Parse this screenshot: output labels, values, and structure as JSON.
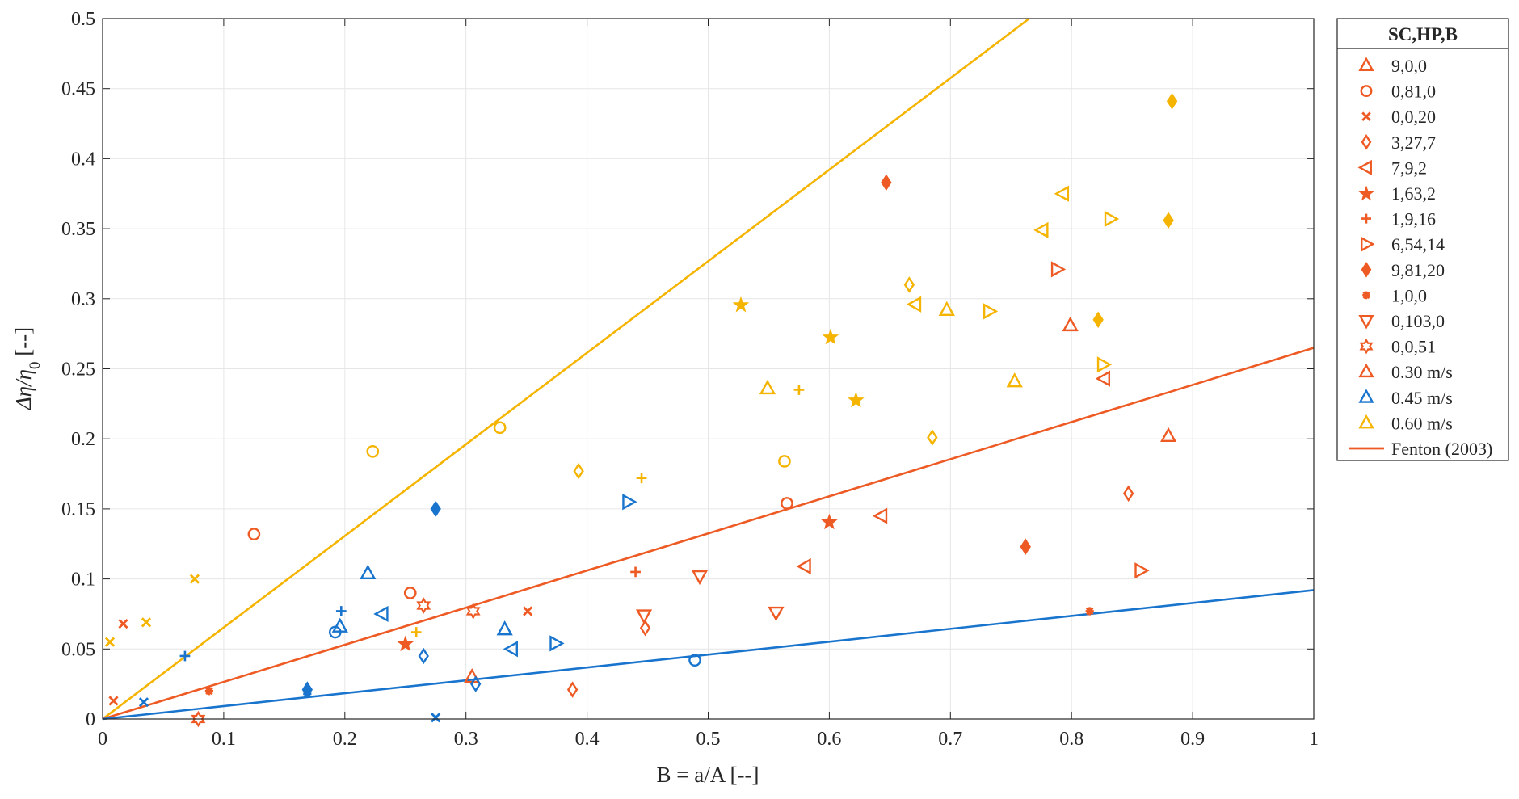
{
  "colors": {
    "c030": "#EE5A24",
    "c045": "#1874CD",
    "c060": "#F5B400",
    "grid": "#e6e6e6",
    "axis": "#262626"
  },
  "chart_data": {
    "type": "scatter",
    "xlabel": "B = a/A [--]",
    "ylabel_parts": [
      "Δη/η",
      "0",
      " [--]"
    ],
    "xlim": [
      0,
      1
    ],
    "ylim": [
      0,
      0.5
    ],
    "grid": true,
    "x_ticks": [
      0,
      0.1,
      0.2,
      0.3,
      0.4,
      0.5,
      0.6,
      0.7,
      0.8,
      0.9,
      1
    ],
    "x_tick_labels": [
      "0",
      "0.1",
      "0.2",
      "0.3",
      "0.4",
      "0.5",
      "0.6",
      "0.7",
      "0.8",
      "0.9",
      "1"
    ],
    "y_ticks": [
      0,
      0.05,
      0.1,
      0.15,
      0.2,
      0.25,
      0.3,
      0.35,
      0.4,
      0.45,
      0.5
    ],
    "y_tick_labels": [
      "0",
      "0.05",
      "0.1",
      "0.15",
      "0.2",
      "0.25",
      "0.3",
      "0.35",
      "0.4",
      "0.45",
      "0.5"
    ],
    "legend": {
      "placement": "outside-right-top",
      "title": "SC,HP,B",
      "entries": [
        {
          "label": "9,0,0",
          "marker": "triangle-up",
          "color": "c030"
        },
        {
          "label": "0,81,0",
          "marker": "circle",
          "color": "c030"
        },
        {
          "label": "0,0,20",
          "marker": "x",
          "color": "c030"
        },
        {
          "label": "3,27,7",
          "marker": "diamond",
          "color": "c030"
        },
        {
          "label": "7,9,2",
          "marker": "triangle-left",
          "color": "c030"
        },
        {
          "label": "1,63,2",
          "marker": "star",
          "color": "c030"
        },
        {
          "label": "1,9,16",
          "marker": "plus",
          "color": "c030"
        },
        {
          "label": "6,54,14",
          "marker": "triangle-right",
          "color": "c030"
        },
        {
          "label": "9,81,20",
          "marker": "diamond-filled",
          "color": "c030"
        },
        {
          "label": "1,0,0",
          "marker": "asterisk",
          "color": "c030"
        },
        {
          "label": "0,103,0",
          "marker": "triangle-down",
          "color": "c030"
        },
        {
          "label": "0,0,51",
          "marker": "hexagram",
          "color": "c030"
        },
        {
          "label": "0.30 m/s",
          "marker": "triangle-up",
          "color": "c030"
        },
        {
          "label": "0.45 m/s",
          "marker": "triangle-up",
          "color": "c045"
        },
        {
          "label": "0.60 m/s",
          "marker": "triangle-up",
          "color": "c060"
        },
        {
          "label": "Fenton (2003)",
          "marker": "line",
          "color": "c030"
        }
      ]
    },
    "lines": [
      {
        "name": "0.60 m/s fit",
        "color": "c060",
        "slope": 0.5,
        "x": [
          0,
          0.765
        ],
        "y": [
          0,
          0.5
        ]
      },
      {
        "name": "Fenton (2003)",
        "color": "c030",
        "slope": 0.265,
        "x": [
          0,
          1
        ],
        "y": [
          0,
          0.265
        ]
      },
      {
        "name": "0.45 m/s fit",
        "color": "c045",
        "slope": 0.092,
        "x": [
          0,
          1
        ],
        "y": [
          0,
          0.092
        ]
      }
    ],
    "series": [
      {
        "name": "9,0,0",
        "marker": "triangle-up",
        "points": [
          {
            "x": 0.305,
            "y": 0.03,
            "c": "c030"
          },
          {
            "x": 0.799,
            "y": 0.281,
            "c": "c030"
          },
          {
            "x": 0.88,
            "y": 0.202,
            "c": "c030"
          },
          {
            "x": 0.196,
            "y": 0.066,
            "c": "c045"
          },
          {
            "x": 0.219,
            "y": 0.104,
            "c": "c045"
          },
          {
            "x": 0.332,
            "y": 0.064,
            "c": "c045"
          },
          {
            "x": 0.549,
            "y": 0.236,
            "c": "c060"
          },
          {
            "x": 0.697,
            "y": 0.292,
            "c": "c060"
          },
          {
            "x": 0.753,
            "y": 0.241,
            "c": "c060"
          }
        ]
      },
      {
        "name": "0,81,0",
        "marker": "circle",
        "points": [
          {
            "x": 0.125,
            "y": 0.132,
            "c": "c030"
          },
          {
            "x": 0.254,
            "y": 0.09,
            "c": "c030"
          },
          {
            "x": 0.565,
            "y": 0.154,
            "c": "c030"
          },
          {
            "x": 0.192,
            "y": 0.062,
            "c": "c045"
          },
          {
            "x": 0.489,
            "y": 0.042,
            "c": "c045"
          },
          {
            "x": 0.223,
            "y": 0.191,
            "c": "c060"
          },
          {
            "x": 0.328,
            "y": 0.208,
            "c": "c060"
          },
          {
            "x": 0.563,
            "y": 0.184,
            "c": "c060"
          }
        ]
      },
      {
        "name": "0,0,20",
        "marker": "x",
        "points": [
          {
            "x": 0.009,
            "y": 0.013,
            "c": "c030"
          },
          {
            "x": 0.017,
            "y": 0.068,
            "c": "c030"
          },
          {
            "x": 0.351,
            "y": 0.077,
            "c": "c030"
          },
          {
            "x": 0.034,
            "y": 0.012,
            "c": "c045"
          },
          {
            "x": 0.275,
            "y": 0.001,
            "c": "c045"
          },
          {
            "x": 0.006,
            "y": 0.055,
            "c": "c060"
          },
          {
            "x": 0.036,
            "y": 0.069,
            "c": "c060"
          },
          {
            "x": 0.076,
            "y": 0.1,
            "c": "c060"
          }
        ]
      },
      {
        "name": "3,27,7",
        "marker": "diamond",
        "points": [
          {
            "x": 0.388,
            "y": 0.021,
            "c": "c030"
          },
          {
            "x": 0.448,
            "y": 0.065,
            "c": "c030"
          },
          {
            "x": 0.847,
            "y": 0.161,
            "c": "c030"
          },
          {
            "x": 0.265,
            "y": 0.045,
            "c": "c045"
          },
          {
            "x": 0.308,
            "y": 0.025,
            "c": "c045"
          },
          {
            "x": 0.393,
            "y": 0.177,
            "c": "c060"
          },
          {
            "x": 0.666,
            "y": 0.31,
            "c": "c060"
          },
          {
            "x": 0.685,
            "y": 0.201,
            "c": "c060"
          }
        ]
      },
      {
        "name": "7,9,2",
        "marker": "triangle-left",
        "points": [
          {
            "x": 0.58,
            "y": 0.109,
            "c": "c030"
          },
          {
            "x": 0.643,
            "y": 0.145,
            "c": "c030"
          },
          {
            "x": 0.827,
            "y": 0.243,
            "c": "c030"
          },
          {
            "x": 0.231,
            "y": 0.075,
            "c": "c045"
          },
          {
            "x": 0.338,
            "y": 0.05,
            "c": "c045"
          },
          {
            "x": 0.671,
            "y": 0.296,
            "c": "c060"
          },
          {
            "x": 0.776,
            "y": 0.349,
            "c": "c060"
          },
          {
            "x": 0.793,
            "y": 0.375,
            "c": "c060"
          }
        ]
      },
      {
        "name": "1,63,2",
        "marker": "star",
        "points": [
          {
            "x": 0.25,
            "y": 0.054,
            "c": "c030"
          },
          {
            "x": 0.6,
            "y": 0.141,
            "c": "c030"
          },
          {
            "x": 0.527,
            "y": 0.296,
            "c": "c060"
          },
          {
            "x": 0.601,
            "y": 0.273,
            "c": "c060"
          },
          {
            "x": 0.622,
            "y": 0.228,
            "c": "c060"
          }
        ]
      },
      {
        "name": "1,9,16",
        "marker": "plus",
        "points": [
          {
            "x": 0.44,
            "y": 0.105,
            "c": "c030"
          },
          {
            "x": 0.197,
            "y": 0.077,
            "c": "c045"
          },
          {
            "x": 0.068,
            "y": 0.045,
            "c": "c045"
          },
          {
            "x": 0.259,
            "y": 0.062,
            "c": "c060"
          },
          {
            "x": 0.445,
            "y": 0.172,
            "c": "c060"
          },
          {
            "x": 0.575,
            "y": 0.235,
            "c": "c060"
          }
        ]
      },
      {
        "name": "6,54,14",
        "marker": "triangle-right",
        "points": [
          {
            "x": 0.788,
            "y": 0.321,
            "c": "c030"
          },
          {
            "x": 0.857,
            "y": 0.106,
            "c": "c030"
          },
          {
            "x": 0.374,
            "y": 0.054,
            "c": "c045"
          },
          {
            "x": 0.434,
            "y": 0.155,
            "c": "c045"
          },
          {
            "x": 0.732,
            "y": 0.291,
            "c": "c060"
          },
          {
            "x": 0.826,
            "y": 0.253,
            "c": "c060"
          },
          {
            "x": 0.832,
            "y": 0.357,
            "c": "c060"
          }
        ]
      },
      {
        "name": "9,81,20",
        "marker": "diamond-filled",
        "points": [
          {
            "x": 0.647,
            "y": 0.383,
            "c": "c030"
          },
          {
            "x": 0.762,
            "y": 0.123,
            "c": "c030"
          },
          {
            "x": 0.169,
            "y": 0.021,
            "c": "c045"
          },
          {
            "x": 0.275,
            "y": 0.15,
            "c": "c045"
          },
          {
            "x": 0.822,
            "y": 0.285,
            "c": "c060"
          },
          {
            "x": 0.88,
            "y": 0.356,
            "c": "c060"
          },
          {
            "x": 0.883,
            "y": 0.441,
            "c": "c060"
          }
        ]
      },
      {
        "name": "1,0,0",
        "marker": "asterisk",
        "points": [
          {
            "x": 0.088,
            "y": 0.02,
            "c": "c030"
          },
          {
            "x": 0.815,
            "y": 0.077,
            "c": "c030"
          },
          {
            "x": 0.169,
            "y": 0.018,
            "c": "c045"
          }
        ]
      },
      {
        "name": "0,103,0",
        "marker": "triangle-down",
        "points": [
          {
            "x": 0.447,
            "y": 0.074,
            "c": "c030"
          },
          {
            "x": 0.493,
            "y": 0.102,
            "c": "c030"
          },
          {
            "x": 0.556,
            "y": 0.076,
            "c": "c030"
          }
        ]
      },
      {
        "name": "0,0,51",
        "marker": "hexagram",
        "points": [
          {
            "x": 0.079,
            "y": 0.0,
            "c": "c030"
          },
          {
            "x": 0.265,
            "y": 0.081,
            "c": "c030"
          },
          {
            "x": 0.306,
            "y": 0.077,
            "c": "c030"
          }
        ]
      }
    ]
  }
}
